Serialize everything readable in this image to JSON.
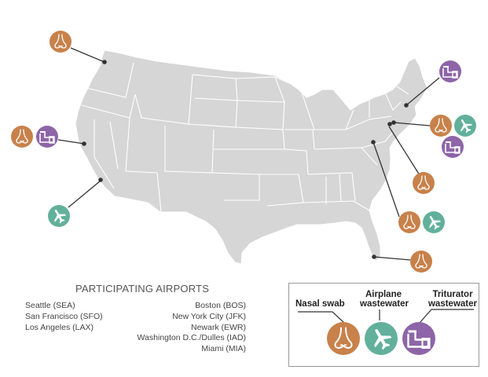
{
  "colors": {
    "map_fill": "#d6d6d6",
    "state_border": "#ffffff",
    "nasal": "#c8814a",
    "airplane": "#62b09b",
    "triturator": "#8d65a8",
    "leader_line": "#333333"
  },
  "legend": {
    "title": "PARTICIPATING AIRPORTS",
    "left_airports": [
      "Seattle (SEA)",
      "San Francisco (SFO)",
      "Los Angeles (LAX)"
    ],
    "right_airports": [
      "Boston (BOS)",
      "New York City (JFK)",
      "Newark (EWR)",
      "Washington D.C./Dulles (IAD)",
      "Miami (MIA)"
    ]
  },
  "key": {
    "nasal_label": "Nasal swab",
    "airplane_label_line1": "Airplane",
    "airplane_label_line2": "wastewater",
    "triturator_label_line1": "Triturator",
    "triturator_label_line2": "wastewater",
    "icons": [
      "nose-icon",
      "airplane-icon",
      "pipe-icon"
    ]
  },
  "airports": [
    {
      "code": "SEA",
      "sample_types": [
        "nasal"
      ]
    },
    {
      "code": "SFO",
      "sample_types": [
        "nasal",
        "triturator"
      ]
    },
    {
      "code": "LAX",
      "sample_types": [
        "airplane"
      ]
    },
    {
      "code": "BOS",
      "sample_types": [
        "triturator"
      ]
    },
    {
      "code": "JFK",
      "sample_types": [
        "nasal",
        "airplane",
        "triturator"
      ]
    },
    {
      "code": "EWR",
      "sample_types": [
        "nasal"
      ]
    },
    {
      "code": "IAD",
      "sample_types": [
        "nasal",
        "airplane"
      ]
    },
    {
      "code": "MIA",
      "sample_types": [
        "nasal"
      ]
    }
  ]
}
